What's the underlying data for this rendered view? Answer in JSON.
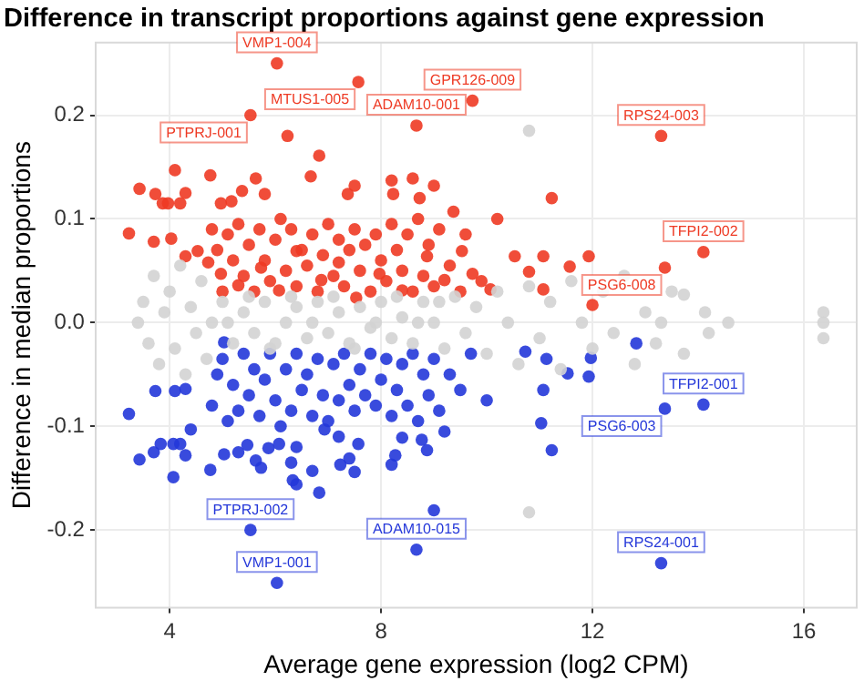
{
  "chart_data": {
    "type": "scatter",
    "title": "Difference in transcript proportions against gene expression",
    "xlabel": "Average gene expression (log2 CPM)",
    "ylabel": "Difference in median proportions",
    "xlim": [
      2.6,
      17
    ],
    "xticks": [
      4,
      8,
      12,
      16
    ],
    "ylim": [
      -0.275,
      0.27
    ],
    "yticks": [
      -0.2,
      -0.1,
      {
        "value": 0,
        "label": "0.0"
      },
      0.1,
      0.2
    ],
    "grid": true,
    "marker": "circle",
    "series": [
      {
        "color": "#d3d3d3",
        "x": [
          3.4,
          3.5,
          3.6,
          3.7,
          3.8,
          3.9,
          4.0,
          4.1,
          4.2,
          4.3,
          4.4,
          4.5,
          4.6,
          4.7,
          4.8,
          5.0,
          5.2,
          5.4,
          5.6,
          5.8,
          6.0,
          6.2,
          6.4,
          6.6,
          6.8,
          7.0,
          7.2,
          7.4,
          7.6,
          7.8,
          8.0,
          8.2,
          8.4,
          8.6,
          8.8,
          9.0,
          9.2,
          9.4,
          9.6,
          9.8,
          10.0,
          10.2,
          10.4,
          10.6,
          10.8,
          10.8,
          10.8,
          11.0,
          11.2,
          11.4,
          11.6,
          11.8,
          12.0,
          12.2,
          12.4,
          12.6,
          12.8,
          13.0,
          13.2,
          13.3,
          13.5,
          13.73,
          13.73,
          14.13,
          14.57,
          14.2,
          16.37,
          16.37,
          16.37,
          5.1,
          5.5,
          5.9,
          6.3,
          6.7,
          7.1,
          7.5,
          7.9,
          8.3,
          8.7,
          9.1
        ],
        "values": [
          0.0,
          0.02,
          -0.02,
          0.045,
          -0.04,
          0.01,
          0.03,
          -0.025,
          0.055,
          -0.05,
          0.015,
          -0.01,
          0.04,
          -0.035,
          0.0,
          0.02,
          -0.02,
          0.01,
          -0.01,
          0.02,
          -0.02,
          0.0,
          0.015,
          -0.015,
          0.02,
          -0.01,
          0.01,
          -0.02,
          0.015,
          -0.005,
          0.02,
          -0.015,
          0.005,
          -0.02,
          0.02,
          0.0,
          -0.025,
          0.025,
          -0.01,
          0.015,
          -0.03,
          0.03,
          0.0,
          -0.04,
          0.035,
          0.185,
          -0.183,
          -0.015,
          0.02,
          -0.045,
          0.04,
          0.0,
          -0.025,
          0.03,
          -0.01,
          0.045,
          -0.04,
          0.01,
          -0.02,
          0.0,
          0.03,
          0.027,
          -0.03,
          0.01,
          0.0,
          -0.01,
          0.01,
          0.0,
          -0.015,
          0.0,
          0.025,
          -0.025,
          0.025,
          0.0,
          0.025,
          -0.025,
          0.0,
          0.025,
          0.0,
          0.02
        ]
      },
      {
        "color": "#ee3a24",
        "x": [
          3.23,
          3.43,
          3.7,
          3.73,
          3.87,
          3.97,
          4.03,
          4.1,
          4.2,
          4.3,
          4.3,
          4.53,
          4.73,
          4.77,
          4.97,
          4.97,
          5.17,
          5.3,
          5.37,
          5.53,
          5.63,
          5.73,
          5.8,
          6.03,
          6.07,
          6.23,
          6.4,
          6.67,
          6.83,
          6.87,
          7.2,
          7.37,
          7.5,
          7.53,
          7.57,
          7.97,
          8.2,
          8.23,
          8.4,
          8.6,
          8.67,
          8.73,
          8.87,
          9.0,
          9.2,
          9.37,
          9.53,
          9.73,
          9.73,
          10.07,
          10.2,
          10.53,
          10.8,
          11.07,
          11.07,
          11.23,
          11.57,
          11.93,
          12.0,
          13.3,
          13.37,
          14.1,
          4.8,
          4.9,
          5.0,
          5.1,
          5.2,
          5.3,
          5.4,
          5.5,
          5.6,
          5.7,
          5.8,
          5.9,
          6.0,
          6.1,
          6.2,
          6.3,
          6.4,
          6.5,
          6.6,
          6.7,
          6.8,
          6.9,
          7.0,
          7.1,
          7.2,
          7.3,
          7.4,
          7.5,
          7.6,
          7.7,
          7.8,
          7.9,
          8.0,
          8.1,
          8.2,
          8.3,
          8.4,
          8.5,
          8.6,
          8.7,
          8.8,
          8.9,
          9.0,
          9.1,
          9.3,
          9.5,
          9.6,
          9.9
        ],
        "values": [
          0.086,
          0.129,
          0.078,
          0.124,
          0.115,
          0.115,
          0.081,
          0.147,
          0.115,
          0.125,
          0.064,
          0.069,
          0.058,
          0.142,
          0.115,
          0.047,
          0.117,
          0.036,
          0.127,
          0.2,
          0.139,
          0.053,
          0.124,
          0.25,
          0.031,
          0.18,
          0.069,
          0.141,
          0.161,
          0.041,
          0.058,
          0.124,
          0.132,
          0.024,
          0.232,
          0.047,
          0.137,
          0.124,
          0.031,
          0.139,
          0.19,
          0.12,
          0.064,
          0.132,
          0.041,
          0.107,
          0.069,
          0.214,
          0.047,
          0.032,
          0.1,
          0.064,
          0.049,
          0.064,
          0.032,
          0.12,
          0.054,
          0.064,
          0.017,
          0.18,
          0.053,
          0.068,
          0.09,
          0.07,
          0.03,
          0.085,
          0.06,
          0.095,
          0.045,
          0.075,
          0.03,
          0.09,
          0.06,
          0.04,
          0.08,
          0.1,
          0.05,
          0.09,
          0.035,
          0.07,
          0.055,
          0.085,
          0.03,
          0.065,
          0.095,
          0.045,
          0.08,
          0.035,
          0.07,
          0.09,
          0.05,
          0.075,
          0.03,
          0.085,
          0.06,
          0.04,
          0.095,
          0.07,
          0.05,
          0.085,
          0.03,
          0.1,
          0.045,
          0.075,
          0.035,
          0.09,
          0.055,
          0.03,
          0.085,
          0.04
        ]
      },
      {
        "color": "#2437d9",
        "x": [
          3.23,
          3.43,
          3.7,
          3.73,
          3.83,
          4.07,
          4.07,
          4.1,
          4.2,
          4.3,
          4.3,
          4.4,
          4.77,
          5.03,
          5.03,
          5.3,
          5.47,
          5.53,
          5.63,
          5.73,
          5.87,
          6.03,
          6.07,
          6.3,
          6.33,
          6.4,
          6.4,
          6.7,
          6.83,
          6.93,
          7.2,
          7.23,
          7.4,
          7.5,
          7.57,
          8.2,
          8.27,
          8.4,
          8.67,
          8.77,
          8.87,
          9.0,
          9.2,
          10.73,
          11.03,
          11.07,
          11.13,
          11.23,
          11.53,
          11.93,
          11.97,
          12.83,
          13.3,
          13.37,
          14.1,
          4.8,
          4.9,
          5.0,
          5.1,
          5.2,
          5.3,
          5.4,
          5.5,
          5.6,
          5.7,
          5.8,
          5.9,
          6.0,
          6.1,
          6.2,
          6.3,
          6.4,
          6.5,
          6.6,
          6.7,
          6.8,
          6.9,
          7.0,
          7.1,
          7.2,
          7.3,
          7.4,
          7.5,
          7.6,
          7.7,
          7.8,
          7.9,
          8.0,
          8.1,
          8.2,
          8.3,
          8.4,
          8.5,
          8.6,
          8.7,
          8.8,
          8.9,
          9.0,
          9.1,
          9.3,
          9.5,
          9.7,
          10.0
        ],
        "values": [
          -0.088,
          -0.132,
          -0.125,
          -0.066,
          -0.117,
          -0.117,
          -0.149,
          -0.066,
          -0.117,
          -0.128,
          -0.064,
          -0.103,
          -0.142,
          -0.019,
          -0.127,
          -0.125,
          -0.118,
          -0.2,
          -0.133,
          -0.14,
          -0.121,
          -0.251,
          -0.117,
          -0.135,
          -0.152,
          -0.156,
          -0.12,
          -0.143,
          -0.164,
          -0.103,
          -0.11,
          -0.137,
          -0.131,
          -0.144,
          -0.117,
          -0.137,
          -0.128,
          -0.111,
          -0.219,
          -0.113,
          -0.123,
          -0.181,
          -0.105,
          -0.028,
          -0.097,
          -0.065,
          -0.035,
          -0.123,
          -0.049,
          -0.052,
          -0.034,
          -0.02,
          -0.232,
          -0.083,
          -0.079,
          -0.08,
          -0.05,
          -0.035,
          -0.095,
          -0.06,
          -0.085,
          -0.03,
          -0.07,
          -0.045,
          -0.09,
          -0.055,
          -0.03,
          -0.075,
          -0.1,
          -0.045,
          -0.085,
          -0.03,
          -0.065,
          -0.05,
          -0.09,
          -0.035,
          -0.07,
          -0.095,
          -0.04,
          -0.075,
          -0.03,
          -0.06,
          -0.085,
          -0.045,
          -0.07,
          -0.03,
          -0.08,
          -0.055,
          -0.035,
          -0.09,
          -0.065,
          -0.04,
          -0.08,
          -0.03,
          -0.095,
          -0.05,
          -0.07,
          -0.035,
          -0.085,
          -0.05,
          -0.065,
          -0.03,
          -0.075
        ]
      }
    ],
    "annotations": [
      {
        "text": "VMP1-004",
        "x": 6.03,
        "y": 0.25
      },
      {
        "text": "MTUS1-005",
        "x": 7.57,
        "y": 0.232
      },
      {
        "text": "GPR126-009",
        "x": 9.73,
        "y": 0.214
      },
      {
        "text": "ADAM10-001",
        "x": 8.67,
        "y": 0.19
      },
      {
        "text": "PTPRJ-001",
        "x": 5.53,
        "y": 0.2
      },
      {
        "text": "RPS24-003",
        "x": 13.3,
        "y": 0.18
      },
      {
        "text": "TFPI2-002",
        "x": 14.1,
        "y": 0.068
      },
      {
        "text": "PSG6-008",
        "x": 13.37,
        "y": 0.053
      },
      {
        "text": "TFPI2-001",
        "x": 14.1,
        "y": -0.079
      },
      {
        "text": "PSG6-003",
        "x": 13.37,
        "y": -0.083
      },
      {
        "text": "PTPRJ-002",
        "x": 5.53,
        "y": -0.2
      },
      {
        "text": "ADAM10-015",
        "x": 8.67,
        "y": -0.219
      },
      {
        "text": "RPS24-001",
        "x": 13.3,
        "y": -0.232
      },
      {
        "text": "VMP1-001",
        "x": 6.03,
        "y": -0.251
      }
    ]
  }
}
